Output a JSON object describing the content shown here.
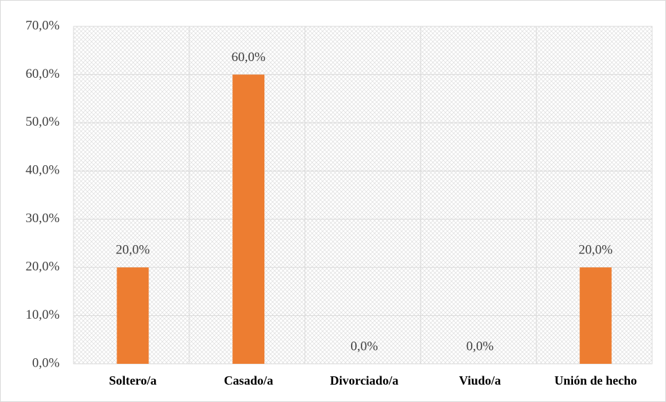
{
  "chart_data": {
    "type": "bar",
    "categories": [
      "Soltero/a",
      "Casado/a",
      "Divorciado/a",
      "Viudo/a",
      "Unión de hecho"
    ],
    "values": [
      20,
      60,
      0,
      0,
      20
    ],
    "value_labels": [
      "20,0%",
      "60,0%",
      "0,0%",
      "0,0%",
      "20,0%"
    ],
    "color": "#ed7d31",
    "ylim": [
      0,
      70
    ],
    "yticks": [
      {
        "value": 0,
        "label": "0,0%"
      },
      {
        "value": 10,
        "label": "10,0%"
      },
      {
        "value": 20,
        "label": "20,0%"
      },
      {
        "value": 30,
        "label": "30,0%"
      },
      {
        "value": 40,
        "label": "40,0%"
      },
      {
        "value": 50,
        "label": "50,0%"
      },
      {
        "value": 60,
        "label": "60,0%"
      },
      {
        "value": 70,
        "label": "70,0%"
      }
    ],
    "grid": true
  }
}
